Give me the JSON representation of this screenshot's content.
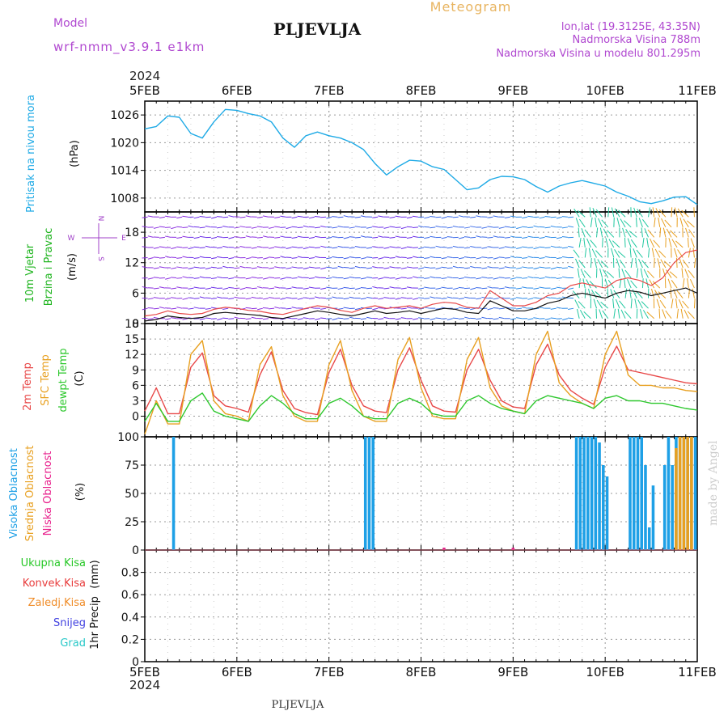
{
  "header": {
    "model_label": "Model",
    "model_value": "wrf-nmm_v3.9.1  e1km",
    "station": "PLJEVLJA",
    "product": "Meteogram",
    "coords": "lon,lat (19.3125E, 43.35N)",
    "elevation": "Nadmorska Visina 788m",
    "model_elevation": "Nadmorska Visina u modelu 801.295m",
    "year_top": "2024",
    "year_bottom": "2024",
    "footer_station": "PLJEVLJA",
    "credit": "made by Angel"
  },
  "colors": {
    "pressure": "#1eaae6",
    "temp2m": "#e84848",
    "sfc_temp": "#e8a020",
    "dewpoint": "#2ec82e",
    "high_cloud": "#1ea0e6",
    "mid_cloud": "#e8a020",
    "low_cloud": "#e8208c",
    "wind_label": "#1eb41e",
    "wind_dir_label": "#a040c8",
    "total_precip": "#28c828",
    "conv_precip": "#e83c3c",
    "freezing_precip": "#f08c28",
    "snow": "#4040e0",
    "graupel": "#28c8c8",
    "grid": "#9a9a9a"
  },
  "chart_data": {
    "time_axis": {
      "dates": [
        "5FEB",
        "6FEB",
        "7FEB",
        "8FEB",
        "9FEB",
        "10FEB",
        "11FEB"
      ],
      "start": "2024-02-05 00:00",
      "end": "2024-02-11 00:00",
      "grid": true
    },
    "pressure": {
      "type": "line",
      "ylabel": "Pritisak na nivou mora",
      "unit": "(hPa)",
      "yticks": [
        1008,
        1014,
        1020,
        1026
      ],
      "ylim": [
        1005,
        1029
      ],
      "x_hours": [
        0,
        3,
        6,
        9,
        12,
        15,
        18,
        21,
        24,
        27,
        30,
        33,
        36,
        39,
        42,
        45,
        48,
        51,
        54,
        57,
        60,
        63,
        66,
        69,
        72,
        75,
        78,
        81,
        84,
        87,
        90,
        93,
        96,
        99,
        102,
        105,
        108,
        111,
        114,
        117,
        120,
        123,
        126,
        129,
        132,
        135,
        138,
        141,
        144
      ],
      "values": [
        1023,
        1023.5,
        1025.8,
        1025.5,
        1022,
        1021,
        1024.5,
        1027.2,
        1027,
        1026.3,
        1025.8,
        1024.5,
        1021,
        1019,
        1021.5,
        1022.3,
        1021.5,
        1021,
        1020,
        1018.5,
        1015.5,
        1013,
        1014.8,
        1016.2,
        1016,
        1014.8,
        1014.2,
        1012,
        1009.8,
        1010.2,
        1012,
        1012.7,
        1012.6,
        1012,
        1010.5,
        1009.3,
        1010.6,
        1011.3,
        1011.8,
        1011.2,
        1010.6,
        1009.3,
        1008.4,
        1007.2,
        1006.8,
        1007.4,
        1008.2,
        1008.3,
        1006.6
      ]
    },
    "wind": {
      "type": "line",
      "ylabel_1": "10m Vjetar",
      "ylabel_2": "Brzina i Pravac",
      "unit": "(m/s)",
      "direction_key": [
        "N",
        "W",
        "E",
        "S"
      ],
      "yticks": [
        0,
        6,
        12,
        18
      ],
      "ylim": [
        0,
        22
      ],
      "x_hours": [
        0,
        3,
        6,
        9,
        12,
        15,
        18,
        21,
        24,
        27,
        30,
        33,
        36,
        39,
        42,
        45,
        48,
        51,
        54,
        57,
        60,
        63,
        66,
        69,
        72,
        75,
        78,
        81,
        84,
        87,
        90,
        93,
        96,
        99,
        102,
        105,
        108,
        111,
        114,
        117,
        120,
        123,
        126,
        129,
        132,
        135,
        138,
        141,
        144
      ],
      "speed": [
        0.5,
        0.8,
        1.5,
        1.2,
        1.0,
        1.2,
        2.0,
        2.2,
        2.0,
        1.8,
        1.6,
        1.2,
        1.0,
        1.5,
        2.0,
        2.5,
        2.2,
        1.8,
        1.5,
        2.0,
        2.5,
        2.0,
        2.2,
        2.5,
        2.0,
        2.5,
        3.0,
        2.8,
        2.2,
        2.0,
        4.5,
        3.5,
        2.5,
        2.5,
        3.0,
        4.0,
        4.5,
        5.5,
        6.0,
        5.5,
        5.0,
        6.0,
        6.5,
        6.2,
        5.5,
        6.0,
        6.5,
        7.0,
        6.0
      ],
      "gust": [
        1.5,
        1.8,
        2.5,
        2.0,
        1.8,
        2.0,
        2.8,
        3.2,
        3.0,
        2.6,
        2.4,
        2.0,
        1.8,
        2.4,
        3.0,
        3.5,
        3.2,
        2.6,
        2.2,
        3.0,
        3.5,
        3.0,
        3.2,
        3.5,
        3.0,
        3.8,
        4.2,
        4.0,
        3.2,
        3.0,
        6.5,
        5.0,
        3.5,
        3.5,
        4.2,
        5.5,
        6.0,
        7.5,
        8.0,
        7.5,
        7.0,
        8.5,
        9.0,
        8.5,
        7.5,
        9.0,
        12.0,
        14.0,
        14.5
      ]
    },
    "temperature": {
      "type": "line",
      "ylabel_1": "2m Temp",
      "ylabel_2": "SFC Temp",
      "ylabel_3": "dewpt Temp",
      "unit": "(C)",
      "yticks": [
        0,
        3,
        6,
        9,
        12,
        15,
        18
      ],
      "ylim": [
        -4,
        18
      ],
      "x_hours": [
        0,
        3,
        6,
        9,
        12,
        15,
        18,
        21,
        24,
        27,
        30,
        33,
        36,
        39,
        42,
        45,
        48,
        51,
        54,
        57,
        60,
        63,
        66,
        69,
        72,
        75,
        78,
        81,
        84,
        87,
        90,
        93,
        96,
        99,
        102,
        105,
        108,
        111,
        114,
        117,
        120,
        123,
        126,
        129,
        132,
        135,
        138,
        141,
        144
      ],
      "series": [
        {
          "name": "2m Temp",
          "values": [
            1.0,
            5.5,
            0.5,
            0.5,
            9.5,
            12.3,
            4.0,
            2.0,
            1.5,
            0.8,
            8.0,
            12.5,
            5.0,
            1.5,
            0.7,
            0.3,
            8.5,
            13.0,
            6.0,
            2.0,
            1.0,
            0.7,
            9.0,
            13.3,
            7.0,
            2.0,
            1.0,
            0.8,
            9.0,
            13.0,
            7.0,
            3.0,
            1.8,
            1.5,
            10.0,
            14.0,
            8.0,
            5.0,
            3.5,
            2.3,
            9.5,
            13.6,
            9.0,
            8.5,
            8.0,
            7.5,
            7.0,
            6.5,
            6.3
          ]
        },
        {
          "name": "SFC Temp",
          "values": [
            -3.5,
            3.0,
            -1.5,
            -1.5,
            12.0,
            14.7,
            3.0,
            0.5,
            0.0,
            -1.0,
            10.0,
            13.5,
            4.0,
            0.0,
            -1.0,
            -1.0,
            10.0,
            14.7,
            5.0,
            0.0,
            -1.0,
            -1.0,
            11.0,
            15.3,
            5.5,
            0.0,
            -0.5,
            -0.5,
            11.0,
            15.3,
            5.5,
            2.0,
            1.0,
            0.5,
            12.0,
            16.5,
            6.5,
            4.0,
            2.5,
            1.5,
            12.0,
            16.5,
            8.0,
            6.0,
            6.0,
            5.5,
            5.5,
            5.0,
            4.8
          ]
        },
        {
          "name": "dewpt Temp",
          "values": [
            -1.0,
            2.5,
            -1.0,
            -1.0,
            3.0,
            4.5,
            1.0,
            0.0,
            -0.5,
            -1.0,
            2.0,
            4.0,
            2.5,
            0.5,
            -0.5,
            -0.5,
            2.5,
            3.5,
            2.0,
            0.0,
            -0.5,
            -0.5,
            2.5,
            3.5,
            2.5,
            0.5,
            0.0,
            0.0,
            3.0,
            4.0,
            2.5,
            1.5,
            1.0,
            0.5,
            3.0,
            4.0,
            3.5,
            3.0,
            2.5,
            1.5,
            3.5,
            4.0,
            3.0,
            3.0,
            2.5,
            2.5,
            2.0,
            1.5,
            1.2
          ]
        }
      ]
    },
    "cloud": {
      "type": "bar",
      "ylabel_1": "Visoka Oblacnost",
      "ylabel_2": "Srednja Oblacnost",
      "ylabel_3": "Niska Oblacnost",
      "unit": "(%)",
      "yticks": [
        0,
        25,
        50,
        75,
        100
      ],
      "ylim": [
        0,
        100
      ],
      "high_cloud_hours": [
        7.5,
        57.5,
        58.5,
        59.5,
        112.5,
        113.5,
        114.5,
        115.5,
        116.5,
        117.5,
        118.5,
        119.5,
        120.5,
        126.5,
        127.5,
        128.5,
        129.5,
        130.5,
        131.5,
        132.5,
        133.5,
        135.5,
        136.5,
        137.5,
        138.5,
        139.5,
        140.5,
        141.5,
        142.5,
        143.5
      ],
      "high_cloud_values": [
        100,
        100,
        100,
        100,
        100,
        100,
        100,
        100,
        100,
        100,
        95,
        75,
        65,
        100,
        100,
        100,
        100,
        75,
        20,
        57,
        0,
        75,
        100,
        75,
        100,
        100,
        100,
        100,
        100,
        100
      ],
      "mid_cloud_hours": [
        138.5,
        139.5,
        140.5,
        141.5,
        142.5
      ],
      "mid_cloud_values": [
        90,
        100,
        100,
        100,
        100
      ],
      "low_cloud_hours": [
        78,
        96
      ],
      "low_cloud_values": [
        2,
        2
      ]
    },
    "precipitation": {
      "type": "bar",
      "ylabel": "1hr Precip",
      "unit": "(mm)",
      "legend": [
        "Ukupna Kisa",
        "Konvek.Kisa",
        "Zaledj.Kisa",
        "Snijeg",
        "Grad"
      ],
      "yticks": [
        0,
        0.2,
        0.4,
        0.6,
        0.8
      ],
      "yticklabels": [
        "0",
        "0.2",
        "0.4",
        "0.6",
        "0.8"
      ],
      "ylim": [
        0,
        1.0
      ]
    }
  }
}
